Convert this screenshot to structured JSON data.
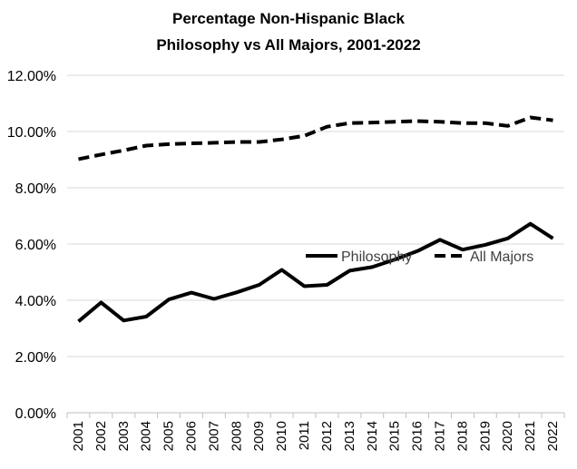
{
  "chart_data": {
    "type": "line",
    "title": "Percentage Non-Hispanic  Black",
    "subtitle": "Philosophy vs All Majors, 2001-2022",
    "xlabel": "",
    "ylabel": "",
    "x": [
      "2001",
      "2002",
      "2003",
      "2004",
      "2005",
      "2006",
      "2007",
      "2008",
      "2009",
      "2010",
      "2011",
      "2012",
      "2013",
      "2014",
      "2015",
      "2016",
      "2017",
      "2018",
      "2019",
      "2020",
      "2021",
      "2022"
    ],
    "y_ticks": [
      "0.00%",
      "2.00%",
      "4.00%",
      "6.00%",
      "8.00%",
      "10.00%",
      "12.00%"
    ],
    "ylim": [
      0,
      12
    ],
    "grid": "horizontal",
    "legend": "center-right",
    "series": [
      {
        "name": "Philosophy",
        "style": "solid",
        "color": "#000000",
        "values": [
          3.25,
          3.92,
          3.28,
          3.42,
          4.03,
          4.27,
          4.05,
          4.28,
          4.55,
          5.08,
          4.5,
          4.55,
          5.05,
          5.18,
          5.45,
          5.75,
          6.15,
          5.8,
          5.97,
          6.2,
          6.72,
          6.2
        ]
      },
      {
        "name": "All Majors",
        "style": "dashed",
        "color": "#000000",
        "values": [
          9.02,
          9.18,
          9.33,
          9.5,
          9.55,
          9.58,
          9.6,
          9.63,
          9.63,
          9.72,
          9.85,
          10.17,
          10.3,
          10.32,
          10.35,
          10.37,
          10.35,
          10.3,
          10.3,
          10.2,
          10.5,
          10.4
        ]
      }
    ]
  }
}
